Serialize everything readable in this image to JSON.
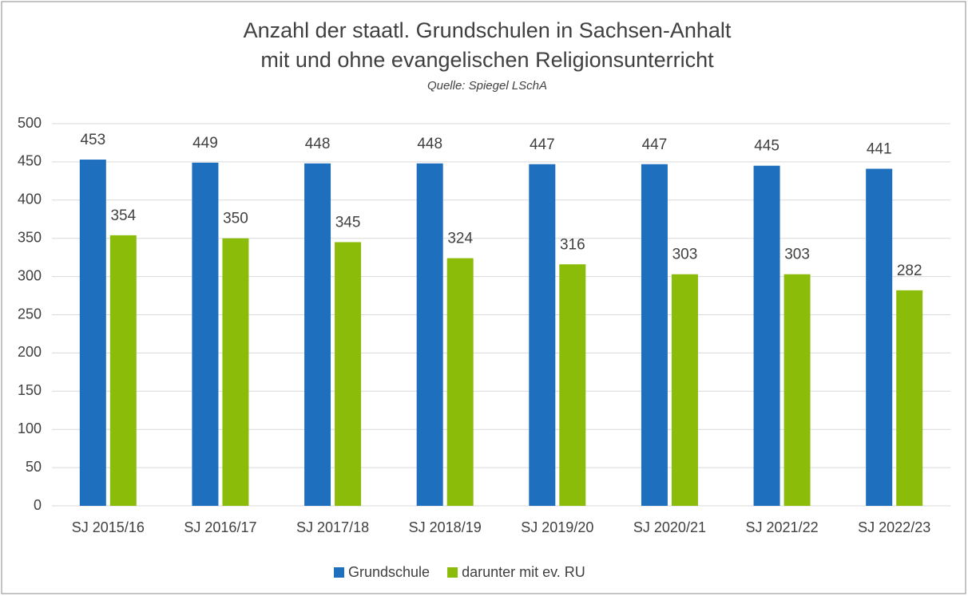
{
  "chart_data": {
    "type": "bar",
    "title": "Anzahl der staatl. Grundschulen in Sachsen-Anhalt",
    "subtitle": "mit und ohne evangelischen Religionsunterricht",
    "source": "Quelle: Spiegel LSchA",
    "categories": [
      "SJ 2015/16",
      "SJ 2016/17",
      "SJ 2017/18",
      "SJ 2018/19",
      "SJ 2019/20",
      "SJ 2020/21",
      "SJ 2021/22",
      "SJ 2022/23"
    ],
    "series": [
      {
        "name": "Grundschule",
        "color": "#1f6fbf",
        "values": [
          453,
          449,
          448,
          448,
          447,
          447,
          445,
          441
        ]
      },
      {
        "name": "darunter mit ev. RU",
        "color": "#8cbc0a",
        "values": [
          354,
          350,
          345,
          324,
          316,
          303,
          303,
          282
        ]
      }
    ],
    "ylim": [
      0,
      500
    ],
    "yticks": [
      0,
      50,
      100,
      150,
      200,
      250,
      300,
      350,
      400,
      450,
      500
    ],
    "grid": true,
    "legend": "bottom"
  }
}
